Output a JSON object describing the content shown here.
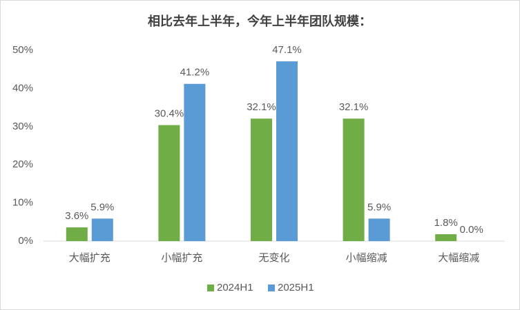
{
  "chart_data": {
    "type": "bar",
    "title": "相比去年上半年，今年上半年团队规模：",
    "categories": [
      "大幅扩充",
      "小幅扩充",
      "无变化",
      "小幅缩减",
      "大幅缩减"
    ],
    "series": [
      {
        "name": "2024H1",
        "color": "#70ad47",
        "values": [
          3.6,
          30.4,
          32.1,
          32.1,
          1.8
        ],
        "value_labels": [
          "3.6%",
          "30.4%",
          "32.1%",
          "32.1%",
          "1.8%"
        ]
      },
      {
        "name": "2025H1",
        "color": "#5b9bd5",
        "values": [
          5.9,
          41.2,
          47.1,
          5.9,
          0.0
        ],
        "value_labels": [
          "5.9%",
          "41.2%",
          "47.1%",
          "5.9%",
          "0.0%"
        ]
      }
    ],
    "ylim": [
      0,
      50
    ],
    "yticks": [
      {
        "value": 0,
        "label": "0%"
      },
      {
        "value": 10,
        "label": "10%"
      },
      {
        "value": 20,
        "label": "20%"
      },
      {
        "value": 30,
        "label": "30%"
      },
      {
        "value": 40,
        "label": "40%"
      },
      {
        "value": 50,
        "label": "50%"
      }
    ],
    "grid": false,
    "legend": "bottom"
  }
}
